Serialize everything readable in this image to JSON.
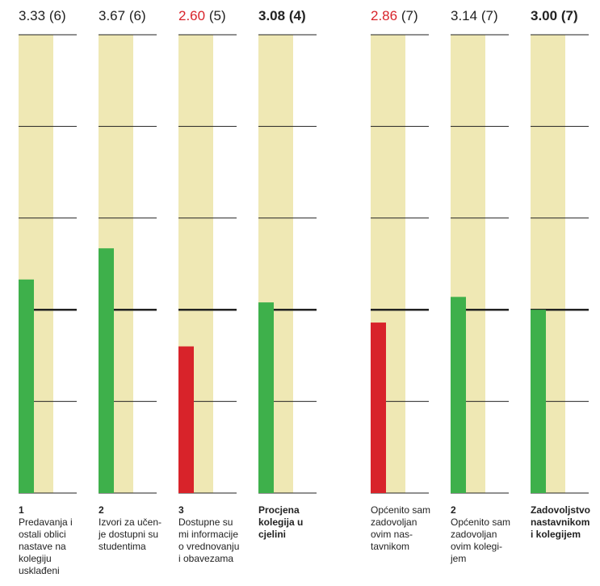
{
  "colors": {
    "green": "#3eb04b",
    "red": "#d8232a",
    "band": "#efe8b4",
    "line": "#222222"
  },
  "chart_data": {
    "type": "bar",
    "ylim": [
      1,
      6
    ],
    "grid": true,
    "reference_line": 3,
    "columns": [
      {
        "value": 3.33,
        "value_label": "3.33",
        "n_label": "(6)",
        "color": "green",
        "bold": false,
        "number": "1",
        "label": "Predavanja i\nostali oblici\nnastave na\nkolegiju\nusklađeni"
      },
      {
        "value": 3.67,
        "value_label": "3.67",
        "n_label": "(6)",
        "color": "green",
        "bold": false,
        "number": "2",
        "label": "Izvori za učen-\nje dostupni su\nstudentima"
      },
      {
        "value": 2.6,
        "value_label": "2.60",
        "n_label": "(5)",
        "color": "red",
        "bold": false,
        "number": "3",
        "label": "Dostupne su\nmi informacije\no vrednovanju\ni obavezama"
      },
      {
        "value": 3.08,
        "value_label": "3.08",
        "n_label": "(4)",
        "color": "green",
        "bold": true,
        "number": "",
        "label": "Procjena\nkolegija u\ncjelini"
      },
      {
        "value": 2.86,
        "value_label": "2.86",
        "n_label": "(7)",
        "color": "red",
        "bold": false,
        "number": "",
        "label": "Općenito sam\nzadovoljan\novim nas-\ntavnikom"
      },
      {
        "value": 3.14,
        "value_label": "3.14",
        "n_label": "(7)",
        "color": "green",
        "bold": false,
        "number": "2",
        "label": "Općenito sam\nzadovoljan\novim kolegi-\njem"
      },
      {
        "value": 3.0,
        "value_label": "3.00",
        "n_label": "(7)",
        "color": "green",
        "bold": true,
        "number": "",
        "label": "Zadovoljstvo\nnastavnikom\ni kolegijem"
      }
    ]
  }
}
